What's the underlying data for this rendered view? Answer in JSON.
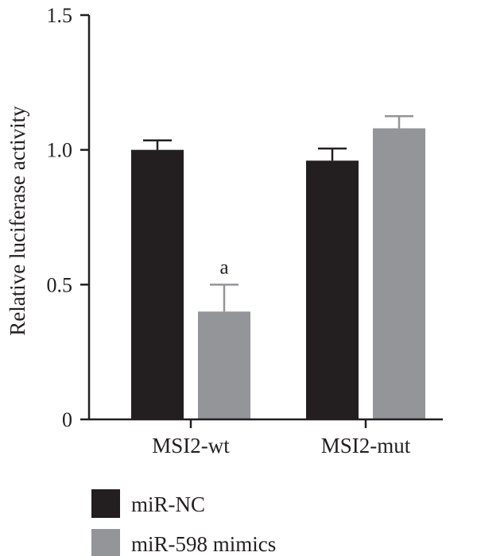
{
  "chart_data": {
    "type": "bar",
    "title": "",
    "xlabel": "",
    "ylabel": "Relative luciferase activity",
    "ylim": [
      0,
      1.5
    ],
    "yticks": [
      0,
      0.5,
      1.0,
      1.5
    ],
    "ytick_labels": [
      "0",
      "0.5",
      "1.0",
      "1.5"
    ],
    "categories": [
      "MSI2-wt",
      "MSI2-mut"
    ],
    "series": [
      {
        "name": "miR-NC",
        "color": "#231f20",
        "values": [
          1.0,
          0.96
        ],
        "errors": [
          0.035,
          0.045
        ]
      },
      {
        "name": "miR-598 mimics",
        "color": "#939598",
        "values": [
          0.4,
          1.08
        ],
        "errors": [
          0.1,
          0.045
        ]
      }
    ],
    "annotations": [
      {
        "category": "MSI2-wt",
        "series": "miR-598 mimics",
        "text": "a"
      }
    ],
    "grid": false,
    "legend_position": "bottom-left"
  }
}
